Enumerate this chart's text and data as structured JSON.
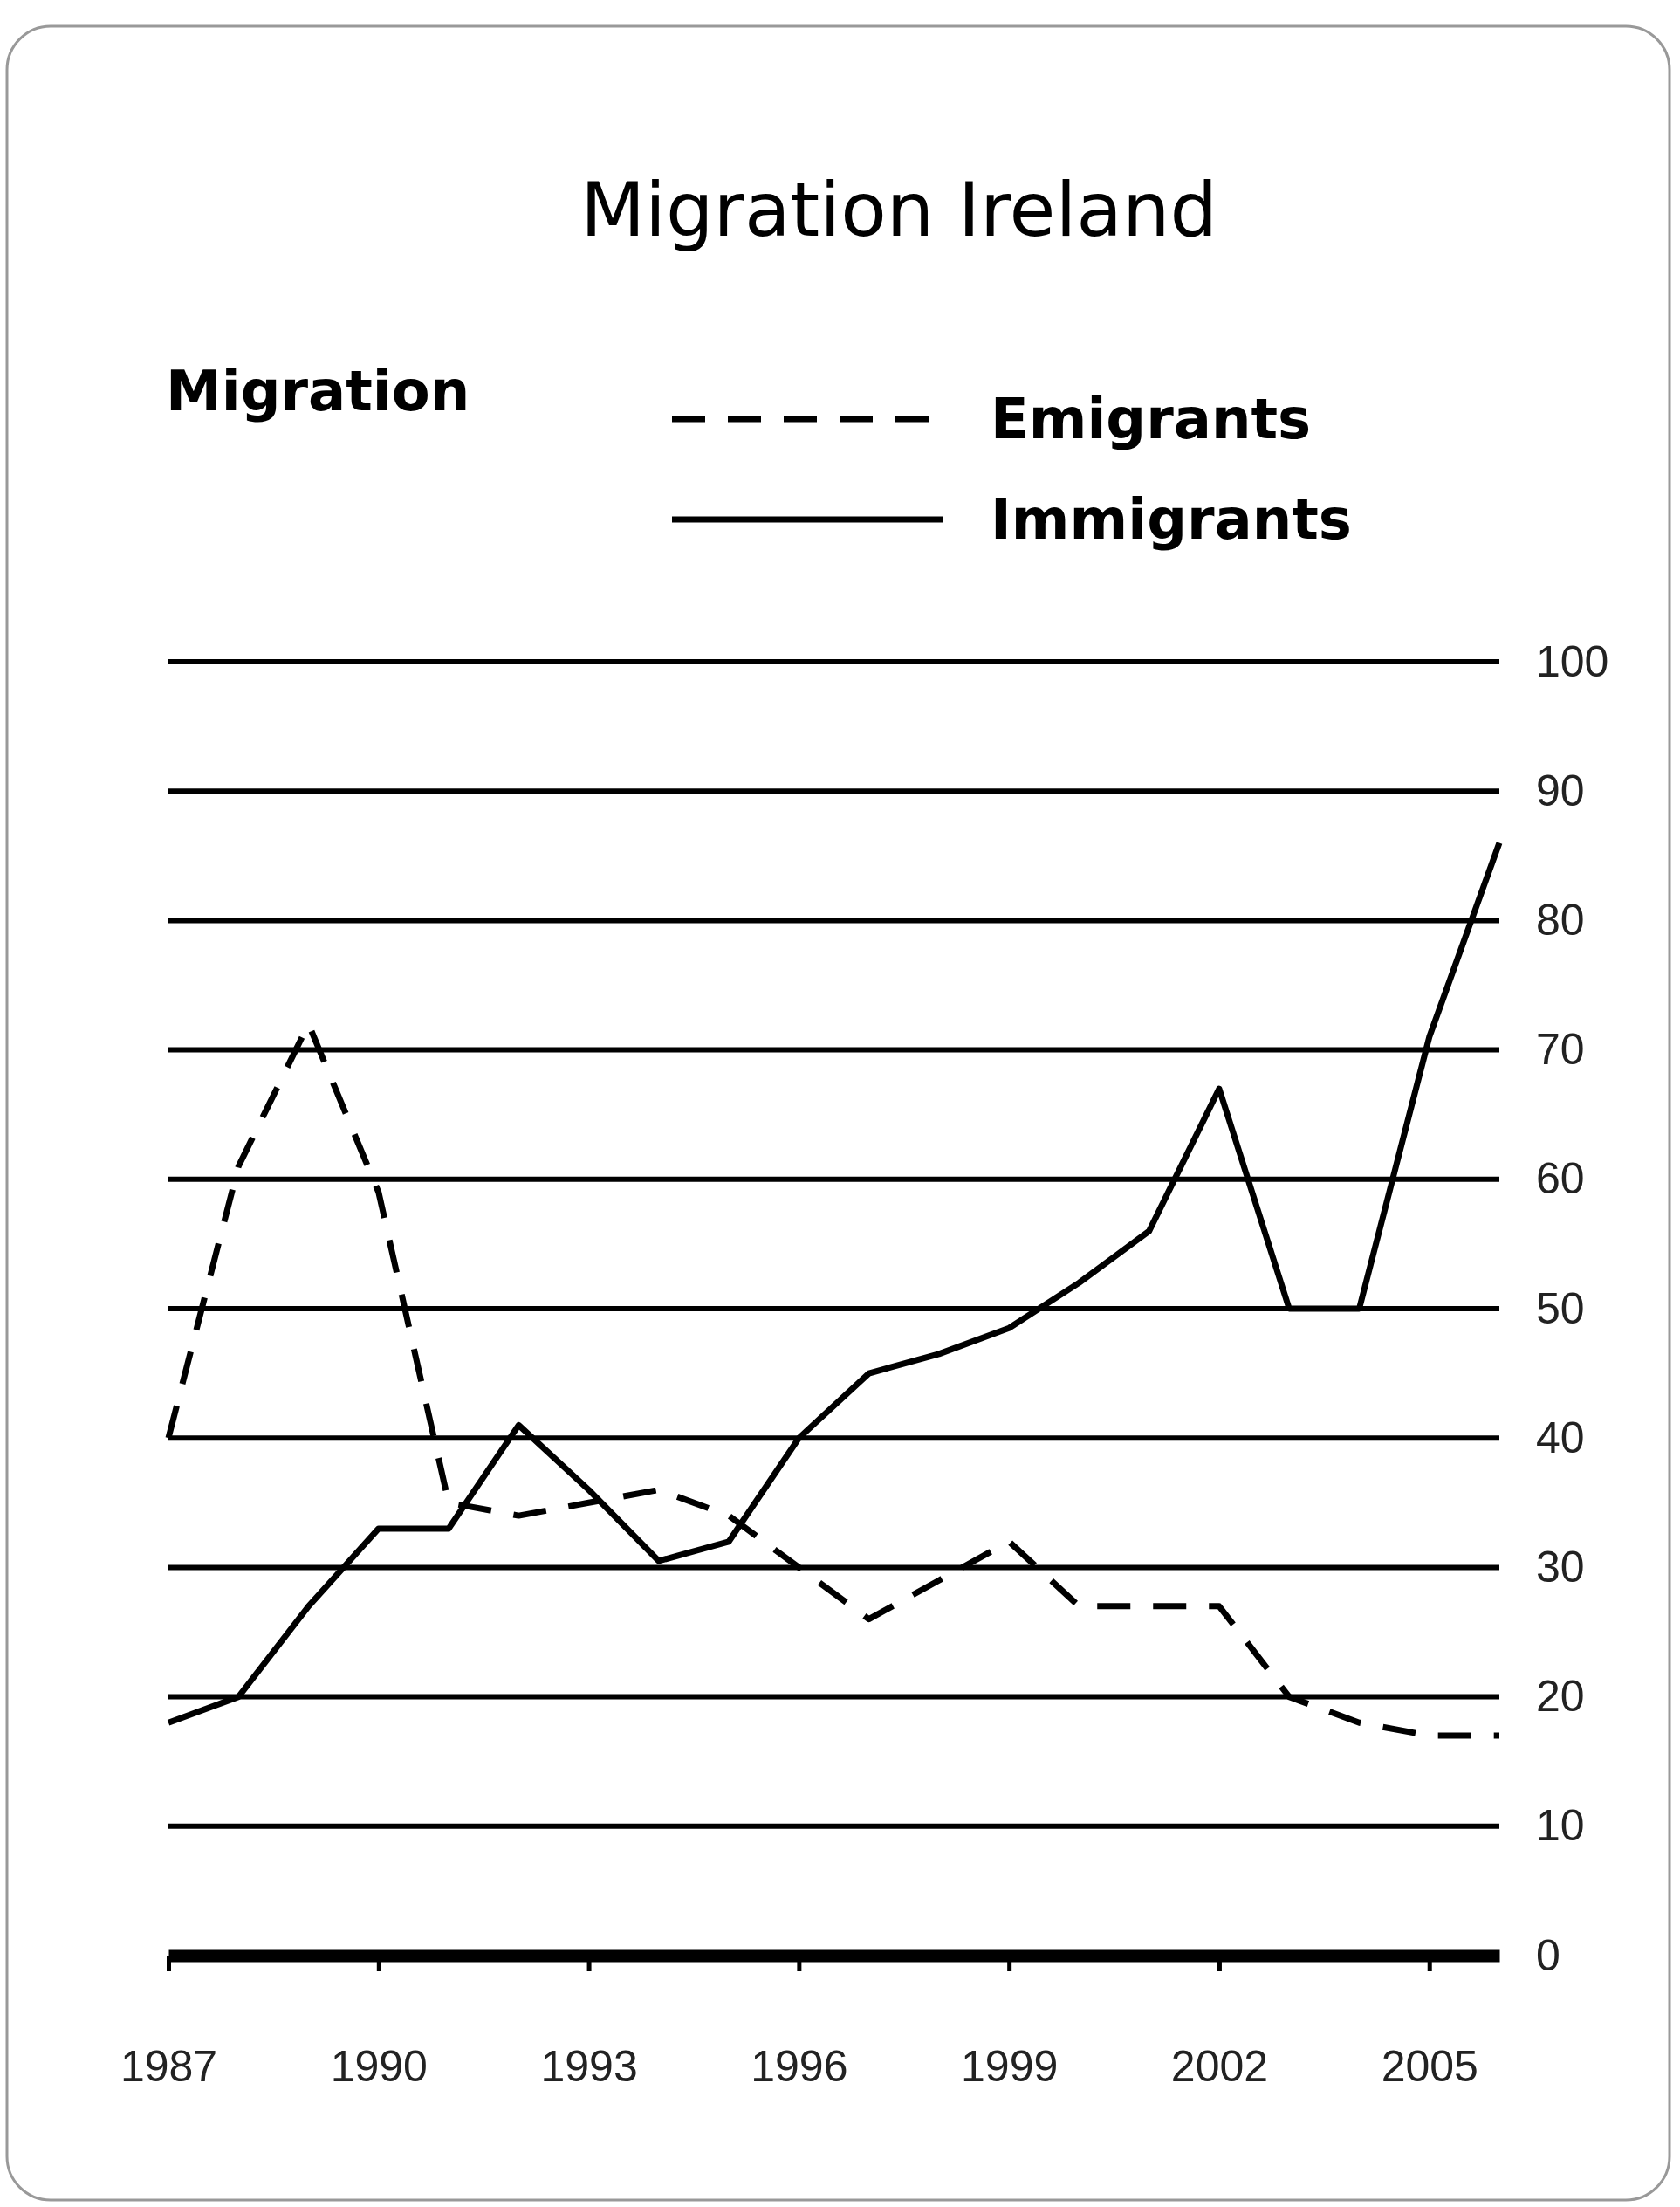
{
  "chart_data": {
    "type": "line",
    "title": "Migration Ireland",
    "ylabel": "Migration",
    "x": [
      1987,
      1988,
      1989,
      1990,
      1991,
      1992,
      1993,
      1994,
      1995,
      1996,
      1997,
      1998,
      1999,
      2000,
      2001,
      2002,
      2003,
      2004,
      2005,
      2006
    ],
    "series": [
      {
        "name": "Emigrants",
        "color": "#000000",
        "line_style": "dashed",
        "values": [
          40,
          61,
          72,
          59,
          35,
          34,
          35,
          36,
          34,
          30,
          26,
          29,
          32,
          27,
          27,
          27,
          20,
          18,
          17,
          17
        ]
      },
      {
        "name": "Immigrants",
        "color": "#000000",
        "line_style": "solid",
        "values": [
          18,
          20,
          27,
          33,
          33,
          41,
          36,
          30.5,
          32,
          40,
          45,
          46.5,
          48.5,
          52,
          56,
          67,
          50,
          50,
          71,
          86
        ]
      }
    ],
    "xlim": [
      1987,
      2006
    ],
    "xticks": [
      1987,
      1990,
      1993,
      1996,
      1999,
      2002,
      2005
    ],
    "ylim": [
      0,
      100
    ],
    "yticks": [
      0,
      10,
      20,
      30,
      40,
      50,
      60,
      70,
      80,
      90,
      100
    ],
    "grid": "y",
    "legend": "top right",
    "marker": "none"
  }
}
